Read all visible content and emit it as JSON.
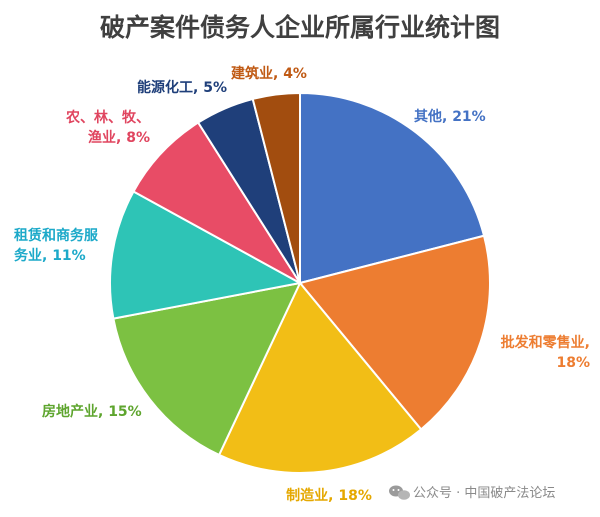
{
  "chart_data": {
    "type": "pie",
    "title": "破产案件债务人企业所属行业统计图",
    "slices": [
      {
        "label": "其他",
        "value": 21,
        "value_text": "21%",
        "color": "#4472C4",
        "label_color": "#4472C4"
      },
      {
        "label": "批发和零售业",
        "value": 18,
        "value_text": "18%",
        "color": "#ED7D31",
        "label_color": "#ED7D31"
      },
      {
        "label": "制造业",
        "value": 18,
        "value_text": "18%",
        "color": "#F2BE16",
        "label_color": "#E5A800"
      },
      {
        "label": "房地产业",
        "value": 15,
        "value_text": "15%",
        "color": "#7CC142",
        "label_color": "#5EA52E"
      },
      {
        "label": "租赁和商务服务业",
        "value": 11,
        "value_text": "11%",
        "color": "#2EC4B6",
        "label_color": "#1CA9C9"
      },
      {
        "label": "农、林、牧、渔业",
        "value": 8,
        "value_text": "8%",
        "color": "#E84C66",
        "label_color": "#E0455F"
      },
      {
        "label": "能源化工",
        "value": 5,
        "value_text": "5%",
        "color": "#1F3F7A",
        "label_color": "#1F3F7A"
      },
      {
        "label": "建筑业",
        "value": 4,
        "value_text": "4%",
        "color": "#A24D0F",
        "label_color": "#C05A14"
      }
    ],
    "legend": "none"
  },
  "watermark": {
    "icon": "wechat-icon",
    "text": "公众号 · 中国破产法论坛"
  },
  "colors": {
    "title": "#404040",
    "watermark": "#8a8a8a",
    "slice_border": "#ffffff"
  }
}
